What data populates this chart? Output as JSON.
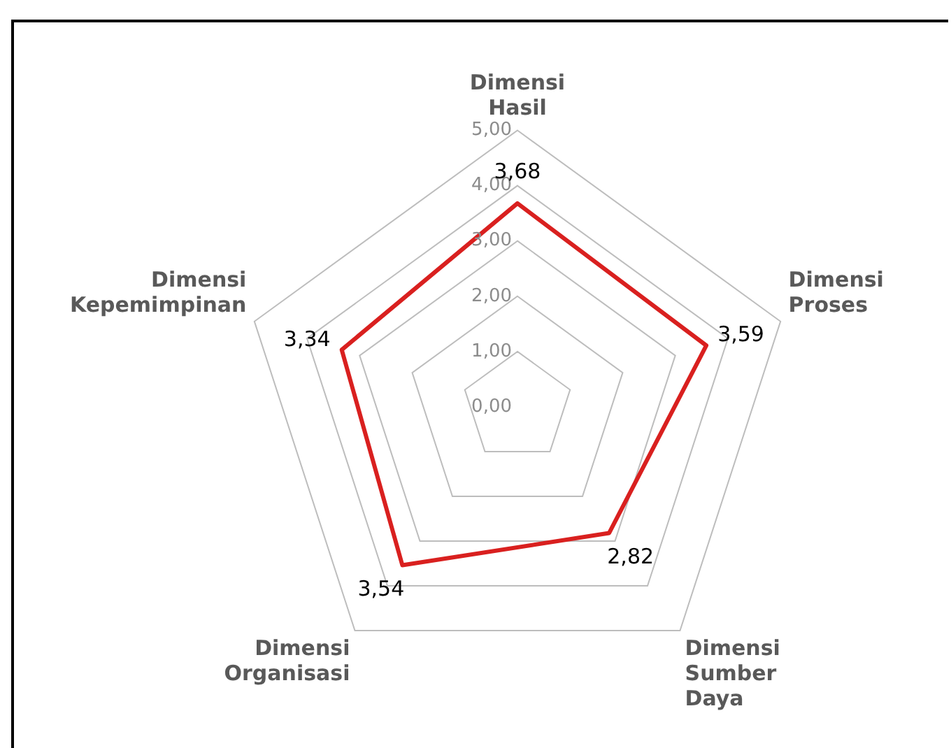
{
  "chart_data": {
    "type": "radar",
    "categories": [
      "Dimensi Hasil",
      "Dimensi Proses",
      "Dimensi Sumber Daya",
      "Dimensi Organisasi",
      "Dimensi Kepemimpinan"
    ],
    "series": [
      {
        "color": "#d9201f",
        "values": [
          3.68,
          3.59,
          2.82,
          3.54,
          3.34
        ],
        "value_labels": [
          "3,68",
          "3,59",
          "2,82",
          "3,54",
          "3,34"
        ]
      }
    ],
    "ylim": [
      0,
      5
    ],
    "yticks": [
      {
        "value": 0,
        "label": "0,00"
      },
      {
        "value": 1,
        "label": "1,00"
      },
      {
        "value": 2,
        "label": "2,00"
      },
      {
        "value": 3,
        "label": "3,00"
      },
      {
        "value": 4,
        "label": "4,00"
      },
      {
        "value": 5,
        "label": "5,00"
      }
    ],
    "marker": "none",
    "legend": false,
    "grid": true
  }
}
